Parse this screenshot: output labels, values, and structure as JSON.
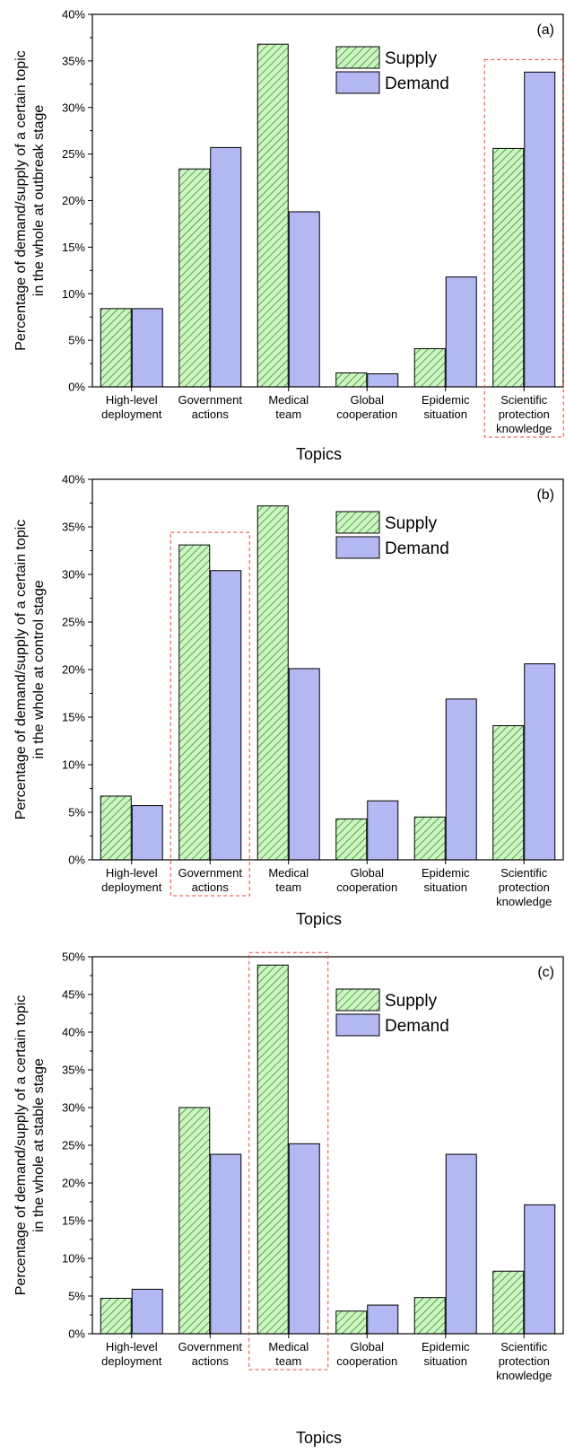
{
  "colors": {
    "supply_fill": "#ccf5c2",
    "supply_hatch": "#1f7a1f",
    "demand_fill": "#b3b8f2",
    "highlight": "#e8443a"
  },
  "chart_data": [
    {
      "type": "bar",
      "panel_label": "(a)",
      "xlabel": "Topics",
      "ylabel": [
        "Percentage of demand/supply of a certain topic",
        "in the whole at outbreak stage"
      ],
      "ylim": [
        0,
        40
      ],
      "yticks": [
        "0%",
        "5%",
        "10%",
        "15%",
        "20%",
        "25%",
        "30%",
        "35%",
        "40%"
      ],
      "categories": [
        [
          "High-level",
          "deployment"
        ],
        [
          "Government",
          "actions"
        ],
        [
          "Medical",
          "team"
        ],
        [
          "Global",
          "cooperation"
        ],
        [
          "Epidemic",
          "situation"
        ],
        [
          "Scientific",
          "protection",
          "knowledge"
        ]
      ],
      "series": [
        {
          "name": "Supply",
          "values": [
            8.4,
            23.4,
            36.8,
            1.5,
            4.1,
            25.6
          ]
        },
        {
          "name": "Demand",
          "values": [
            8.4,
            25.7,
            18.8,
            1.4,
            11.8,
            33.8
          ]
        }
      ],
      "highlight_category": 5,
      "legend_position": "top-center"
    },
    {
      "type": "bar",
      "panel_label": "(b)",
      "xlabel": "Topics",
      "ylabel": [
        "Percentage of demand/supply of a certain topic",
        "in the whole at control stage"
      ],
      "ylim": [
        0,
        40
      ],
      "yticks": [
        "0%",
        "5%",
        "10%",
        "15%",
        "20%",
        "25%",
        "30%",
        "35%",
        "40%"
      ],
      "categories": [
        [
          "High-level",
          "deployment"
        ],
        [
          "Government",
          "actions"
        ],
        [
          "Medical",
          "team"
        ],
        [
          "Global",
          "cooperation"
        ],
        [
          "Epidemic",
          "situation"
        ],
        [
          "Scientific",
          "protection",
          "knowledge"
        ]
      ],
      "series": [
        {
          "name": "Supply",
          "values": [
            6.7,
            33.1,
            37.2,
            4.3,
            4.5,
            14.1
          ]
        },
        {
          "name": "Demand",
          "values": [
            5.7,
            30.4,
            20.1,
            6.2,
            16.9,
            20.6
          ]
        }
      ],
      "highlight_category": 1,
      "legend_position": "top-center"
    },
    {
      "type": "bar",
      "panel_label": "(c)",
      "xlabel": "Topics",
      "ylabel": [
        "Percentage of demand/supply of a certain topic",
        "in the whole at stable stage"
      ],
      "ylim": [
        0,
        50
      ],
      "yticks": [
        "0%",
        "5%",
        "10%",
        "15%",
        "20%",
        "25%",
        "30%",
        "35%",
        "40%",
        "45%",
        "50%"
      ],
      "categories": [
        [
          "High-level",
          "deployment"
        ],
        [
          "Government",
          "actions"
        ],
        [
          "Medical",
          "team"
        ],
        [
          "Global",
          "cooperation"
        ],
        [
          "Epidemic",
          "situation"
        ],
        [
          "Scientific",
          "protection",
          "knowledge"
        ]
      ],
      "series": [
        {
          "name": "Supply",
          "values": [
            4.7,
            30.0,
            48.9,
            3.0,
            4.8,
            8.3
          ]
        },
        {
          "name": "Demand",
          "values": [
            5.9,
            23.8,
            25.2,
            3.8,
            23.8,
            17.1
          ]
        }
      ],
      "highlight_category": 2,
      "legend_position": "top-center"
    }
  ]
}
